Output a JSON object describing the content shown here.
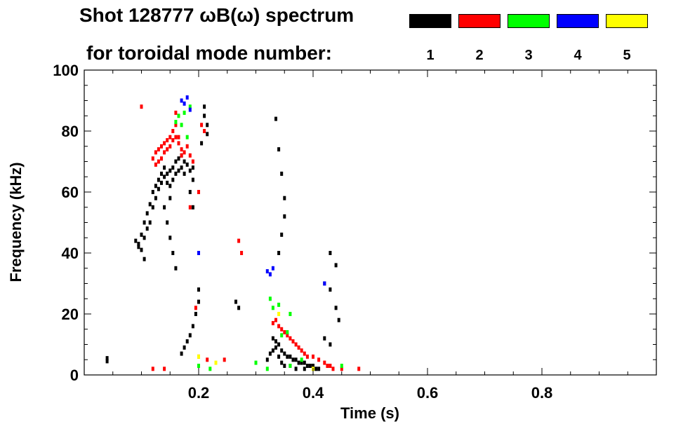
{
  "title_line1": "Shot 128777 ωB(ω) spectrum",
  "title_line2": "for toroidal mode number:",
  "legend": [
    {
      "label": "1",
      "color": "#000000"
    },
    {
      "label": "2",
      "color": "#ff0000"
    },
    {
      "label": "3",
      "color": "#00ff00"
    },
    {
      "label": "4",
      "color": "#0000ff"
    },
    {
      "label": "5",
      "color": "#ffff00"
    }
  ],
  "chart_data": {
    "type": "heatmap",
    "title": "Shot 128777 ωB(ω) spectrum",
    "xlabel": "Time (s)",
    "ylabel": "Frequency (kHz)",
    "xlim": [
      0.0,
      1.0
    ],
    "ylim": [
      0,
      100
    ],
    "x_ticks": [
      0.2,
      0.4,
      0.6,
      0.8
    ],
    "y_ticks": [
      0,
      20,
      40,
      60,
      80,
      100
    ],
    "grid": false,
    "legend_position": "top-right",
    "series": [
      {
        "name": "1",
        "color": "#000000",
        "points": [
          [
            0.04,
            4.5
          ],
          [
            0.04,
            5.5
          ],
          [
            0.09,
            44
          ],
          [
            0.095,
            43
          ],
          [
            0.095,
            42
          ],
          [
            0.1,
            46
          ],
          [
            0.1,
            41
          ],
          [
            0.105,
            45
          ],
          [
            0.105,
            50
          ],
          [
            0.105,
            38
          ],
          [
            0.11,
            48
          ],
          [
            0.11,
            53
          ],
          [
            0.115,
            50
          ],
          [
            0.115,
            56
          ],
          [
            0.12,
            55
          ],
          [
            0.12,
            60
          ],
          [
            0.125,
            58
          ],
          [
            0.125,
            62
          ],
          [
            0.13,
            61
          ],
          [
            0.13,
            64
          ],
          [
            0.135,
            63
          ],
          [
            0.135,
            66
          ],
          [
            0.14,
            65
          ],
          [
            0.14,
            68
          ],
          [
            0.145,
            66
          ],
          [
            0.145,
            63
          ],
          [
            0.15,
            67
          ],
          [
            0.15,
            62
          ],
          [
            0.155,
            68
          ],
          [
            0.155,
            64
          ],
          [
            0.16,
            70
          ],
          [
            0.16,
            66
          ],
          [
            0.165,
            71
          ],
          [
            0.165,
            67
          ],
          [
            0.17,
            72
          ],
          [
            0.17,
            68
          ],
          [
            0.175,
            70
          ],
          [
            0.175,
            66
          ],
          [
            0.18,
            69
          ],
          [
            0.185,
            67
          ],
          [
            0.185,
            60
          ],
          [
            0.19,
            64
          ],
          [
            0.19,
            55
          ],
          [
            0.19,
            68
          ],
          [
            0.14,
            55
          ],
          [
            0.145,
            50
          ],
          [
            0.15,
            45
          ],
          [
            0.155,
            40
          ],
          [
            0.16,
            35
          ],
          [
            0.15,
            58
          ],
          [
            0.21,
            85
          ],
          [
            0.21,
            88
          ],
          [
            0.215,
            82
          ],
          [
            0.215,
            79
          ],
          [
            0.205,
            76
          ],
          [
            0.17,
            7
          ],
          [
            0.175,
            9
          ],
          [
            0.18,
            11
          ],
          [
            0.185,
            13
          ],
          [
            0.19,
            16
          ],
          [
            0.195,
            20
          ],
          [
            0.2,
            24
          ],
          [
            0.2,
            28
          ],
          [
            0.265,
            24
          ],
          [
            0.27,
            22
          ],
          [
            0.335,
            84
          ],
          [
            0.34,
            74
          ],
          [
            0.345,
            66
          ],
          [
            0.35,
            58
          ],
          [
            0.35,
            52
          ],
          [
            0.345,
            46
          ],
          [
            0.34,
            40
          ],
          [
            0.32,
            5
          ],
          [
            0.325,
            7
          ],
          [
            0.33,
            8
          ],
          [
            0.335,
            9
          ],
          [
            0.34,
            10
          ],
          [
            0.345,
            8
          ],
          [
            0.35,
            7
          ],
          [
            0.355,
            6
          ],
          [
            0.36,
            6
          ],
          [
            0.365,
            5
          ],
          [
            0.37,
            5
          ],
          [
            0.375,
            4
          ],
          [
            0.38,
            4
          ],
          [
            0.385,
            4
          ],
          [
            0.39,
            3
          ],
          [
            0.395,
            3
          ],
          [
            0.4,
            3
          ],
          [
            0.405,
            2
          ],
          [
            0.41,
            2
          ],
          [
            0.33,
            12
          ],
          [
            0.335,
            11
          ],
          [
            0.34,
            6
          ],
          [
            0.345,
            4
          ],
          [
            0.35,
            3
          ],
          [
            0.36,
            3
          ],
          [
            0.37,
            2
          ],
          [
            0.385,
            2
          ],
          [
            0.42,
            30
          ],
          [
            0.43,
            28
          ],
          [
            0.43,
            40
          ],
          [
            0.44,
            22
          ],
          [
            0.445,
            18
          ],
          [
            0.42,
            12
          ],
          [
            0.44,
            36
          ],
          [
            0.43,
            10
          ]
        ]
      },
      {
        "name": "2",
        "color": "#ff0000",
        "points": [
          [
            0.12,
            71
          ],
          [
            0.125,
            69
          ],
          [
            0.125,
            73
          ],
          [
            0.13,
            70
          ],
          [
            0.13,
            74
          ],
          [
            0.135,
            71
          ],
          [
            0.135,
            75
          ],
          [
            0.14,
            73
          ],
          [
            0.14,
            76
          ],
          [
            0.145,
            74
          ],
          [
            0.145,
            77
          ],
          [
            0.15,
            75
          ],
          [
            0.15,
            78
          ],
          [
            0.155,
            77
          ],
          [
            0.155,
            80
          ],
          [
            0.16,
            78
          ],
          [
            0.16,
            82
          ],
          [
            0.165,
            78
          ],
          [
            0.165,
            76
          ],
          [
            0.17,
            74
          ],
          [
            0.17,
            72
          ],
          [
            0.175,
            73
          ],
          [
            0.18,
            75
          ],
          [
            0.185,
            72
          ],
          [
            0.19,
            70
          ],
          [
            0.1,
            88
          ],
          [
            0.16,
            86
          ],
          [
            0.185,
            55
          ],
          [
            0.21,
            80
          ],
          [
            0.205,
            82
          ],
          [
            0.2,
            60
          ],
          [
            0.195,
            22
          ],
          [
            0.2,
            6
          ],
          [
            0.215,
            5
          ],
          [
            0.245,
            5
          ],
          [
            0.27,
            44
          ],
          [
            0.275,
            40
          ],
          [
            0.33,
            17
          ],
          [
            0.335,
            18
          ],
          [
            0.34,
            16
          ],
          [
            0.345,
            15
          ],
          [
            0.35,
            14
          ],
          [
            0.355,
            13
          ],
          [
            0.36,
            12
          ],
          [
            0.365,
            11
          ],
          [
            0.37,
            10
          ],
          [
            0.375,
            9
          ],
          [
            0.38,
            8
          ],
          [
            0.385,
            7
          ],
          [
            0.39,
            6
          ],
          [
            0.4,
            6
          ],
          [
            0.41,
            5
          ],
          [
            0.42,
            4
          ],
          [
            0.425,
            3
          ],
          [
            0.43,
            3
          ],
          [
            0.435,
            2
          ],
          [
            0.45,
            2
          ],
          [
            0.48,
            2
          ],
          [
            0.12,
            2
          ],
          [
            0.14,
            2
          ]
        ]
      },
      {
        "name": "3",
        "color": "#00ff00",
        "points": [
          [
            0.16,
            83
          ],
          [
            0.165,
            85
          ],
          [
            0.17,
            82
          ],
          [
            0.175,
            86
          ],
          [
            0.185,
            88
          ],
          [
            0.18,
            78
          ],
          [
            0.325,
            25
          ],
          [
            0.33,
            22
          ],
          [
            0.34,
            23
          ],
          [
            0.36,
            20
          ],
          [
            0.355,
            14
          ],
          [
            0.345,
            13
          ],
          [
            0.3,
            4
          ],
          [
            0.32,
            2
          ],
          [
            0.36,
            3
          ],
          [
            0.38,
            5
          ],
          [
            0.45,
            3
          ],
          [
            0.2,
            3
          ],
          [
            0.22,
            2
          ]
        ]
      },
      {
        "name": "4",
        "color": "#0000ff",
        "points": [
          [
            0.17,
            90
          ],
          [
            0.175,
            89
          ],
          [
            0.18,
            91
          ],
          [
            0.185,
            87
          ],
          [
            0.2,
            40
          ],
          [
            0.32,
            34
          ],
          [
            0.325,
            33
          ],
          [
            0.33,
            35
          ],
          [
            0.42,
            30
          ]
        ]
      },
      {
        "name": "5",
        "color": "#ffff00",
        "points": [
          [
            0.2,
            6
          ],
          [
            0.23,
            4
          ],
          [
            0.34,
            20
          ],
          [
            0.4,
            2
          ]
        ]
      }
    ]
  }
}
